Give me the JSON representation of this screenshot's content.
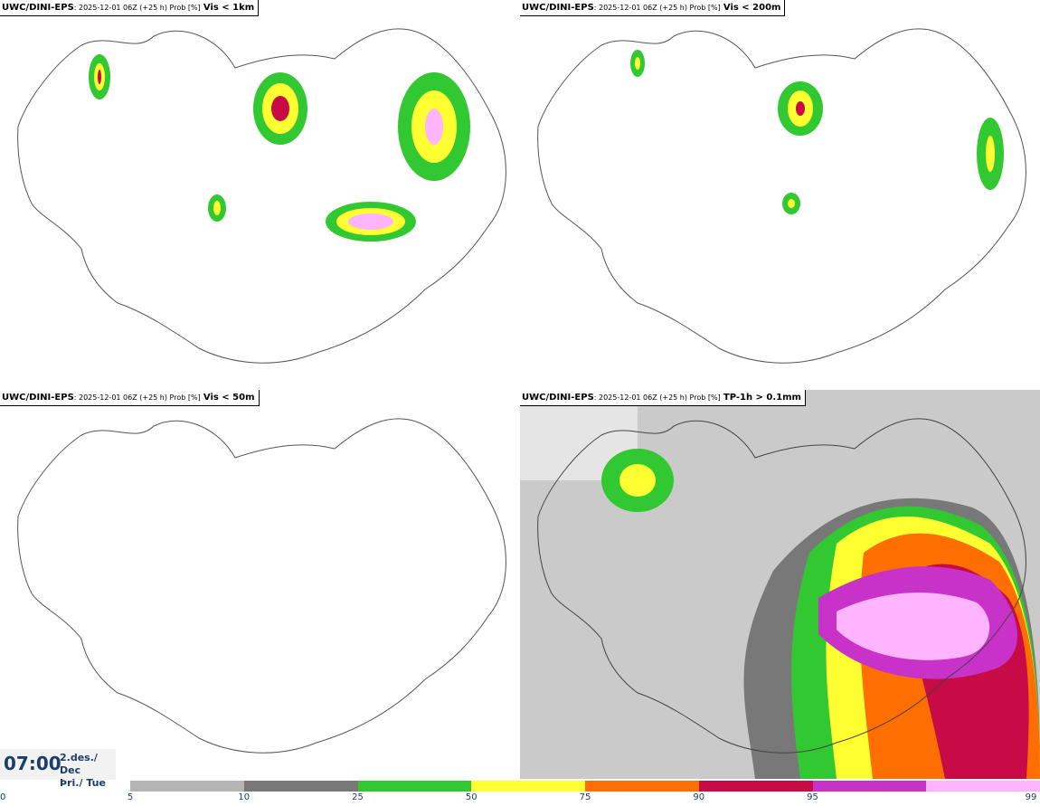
{
  "panels": [
    {
      "model": "UWC/DINI-EPS",
      "meta": ": 2025-12-01 06Z (+25 h) Prob [%]",
      "variable": "Vis < 1km"
    },
    {
      "model": "UWC/DINI-EPS",
      "meta": ": 2025-12-01 06Z (+25 h) Prob [%]",
      "variable": "Vis < 200m"
    },
    {
      "model": "UWC/DINI-EPS",
      "meta": ": 2025-12-01 06Z (+25 h) Prob [%]",
      "variable": "Vis < 50m"
    },
    {
      "model": "UWC/DINI-EPS",
      "meta": ": 2025-12-01 06Z (+25 h) Prob [%]",
      "variable": "TP-1h > 0.1mm"
    }
  ],
  "time": {
    "clock": "07:00",
    "date_line1": "2.des./ Dec",
    "date_line2": "Þri./ Tue"
  },
  "legend": {
    "ticks": [
      "0",
      "5",
      "10",
      "25",
      "50",
      "75",
      "90",
      "95",
      "99"
    ],
    "colors": [
      "#b4b4b4",
      "#787878",
      "#32c832",
      "#ffff32",
      "#ff6e00",
      "#c80a46",
      "#c832c8",
      "#ffb4ff"
    ]
  }
}
